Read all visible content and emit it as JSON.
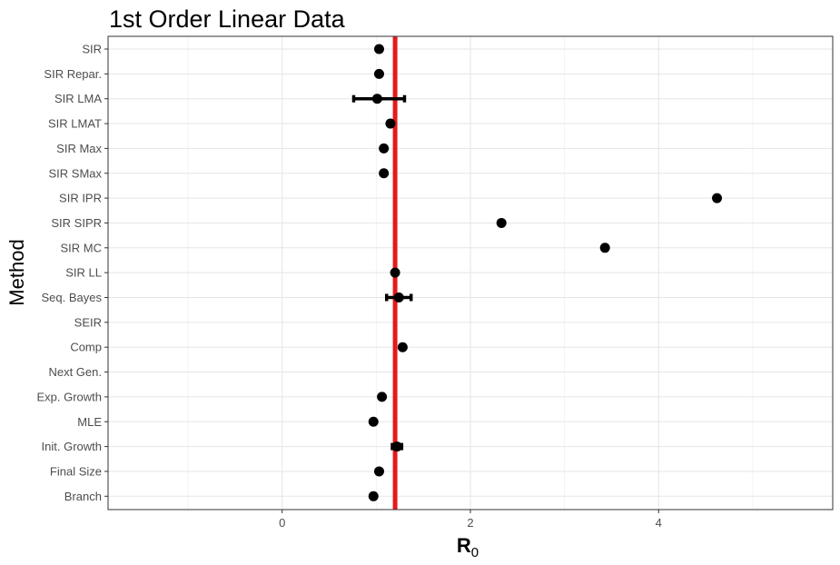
{
  "chart_data": {
    "type": "scatter",
    "title": "1st Order Linear Data",
    "xlabel": {
      "main": "R",
      "sub": "0"
    },
    "ylabel": "Method",
    "xlim": [
      -1.85,
      5.85
    ],
    "xticks": [
      0,
      2,
      4
    ],
    "xtick_labels": [
      "0",
      "2",
      "4"
    ],
    "reference_line": {
      "x": 1.2,
      "color": "#e31a1c"
    },
    "grid": true,
    "categories": [
      "SIR",
      "SIR Repar.",
      "SIR LMA",
      "SIR LMAT",
      "SIR Max",
      "SIR SMax",
      "SIR IPR",
      "SIR SIPR",
      "SIR MC",
      "SIR LL",
      "Seq. Bayes",
      "SEIR",
      "Comp",
      "Next Gen.",
      "Exp. Growth",
      "MLE",
      "Init. Growth",
      "Final Size",
      "Branch"
    ],
    "points": [
      {
        "category": "SIR",
        "x": 1.03,
        "lo": null,
        "hi": null
      },
      {
        "category": "SIR Repar.",
        "x": 1.03,
        "lo": null,
        "hi": null
      },
      {
        "category": "SIR LMA",
        "x": 1.01,
        "lo": 0.76,
        "hi": 1.3
      },
      {
        "category": "SIR LMAT",
        "x": 1.15,
        "lo": null,
        "hi": null
      },
      {
        "category": "SIR Max",
        "x": 1.08,
        "lo": null,
        "hi": null
      },
      {
        "category": "SIR SMax",
        "x": 1.08,
        "lo": null,
        "hi": null
      },
      {
        "category": "SIR IPR",
        "x": 4.62,
        "lo": null,
        "hi": null
      },
      {
        "category": "SIR SIPR",
        "x": 2.33,
        "lo": null,
        "hi": null
      },
      {
        "category": "SIR MC",
        "x": 3.43,
        "lo": null,
        "hi": null
      },
      {
        "category": "SIR LL",
        "x": 1.2,
        "lo": null,
        "hi": null
      },
      {
        "category": "Seq. Bayes",
        "x": 1.24,
        "lo": 1.11,
        "hi": 1.37
      },
      {
        "category": "SEIR",
        "x": null,
        "lo": null,
        "hi": null
      },
      {
        "category": "Comp",
        "x": 1.28,
        "lo": null,
        "hi": null
      },
      {
        "category": "Next Gen.",
        "x": null,
        "lo": null,
        "hi": null
      },
      {
        "category": "Exp. Growth",
        "x": 1.06,
        "lo": null,
        "hi": null
      },
      {
        "category": "MLE",
        "x": 0.97,
        "lo": null,
        "hi": null
      },
      {
        "category": "Init. Growth",
        "x": 1.22,
        "lo": 1.17,
        "hi": 1.27
      },
      {
        "category": "Final Size",
        "x": 1.03,
        "lo": null,
        "hi": null
      },
      {
        "category": "Branch",
        "x": 0.97,
        "lo": null,
        "hi": null
      }
    ],
    "point_color": "#000000"
  }
}
